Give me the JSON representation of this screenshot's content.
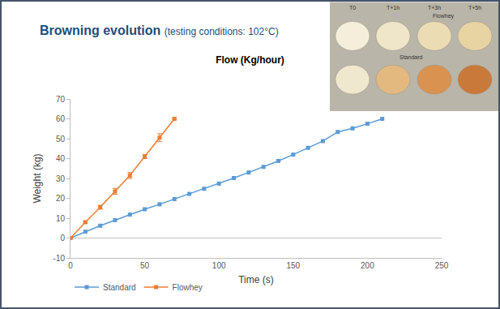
{
  "header": {
    "title": "Browning evolution",
    "subtitle": "(testing conditions: 102°C)"
  },
  "photo": {
    "columns": [
      "T0",
      "T+1h",
      "T+3h",
      "T+5h"
    ],
    "rows": [
      "Flowhey",
      "Standard"
    ]
  },
  "chart_data": {
    "type": "scatter",
    "title": "Flow (Kg/hour)",
    "x_label": "Time (s)",
    "y_label": "Weight (kg)",
    "xlim": [
      0,
      250
    ],
    "xticks": [
      0,
      50,
      100,
      150,
      200,
      250
    ],
    "ylim": [
      -10,
      70
    ],
    "yticks": [
      -10,
      0,
      10,
      20,
      30,
      40,
      50,
      60,
      70
    ],
    "grid": false,
    "legend": "bottom left",
    "series": [
      {
        "name": "Standard",
        "color": "#5B9BD5",
        "marker": "square",
        "line_style": "solid",
        "x": [
          0,
          10,
          20,
          30,
          40,
          50,
          60,
          70,
          80,
          90,
          100,
          110,
          120,
          130,
          140,
          150,
          160,
          170,
          180,
          190,
          200,
          210
        ],
        "values": [
          0,
          3.2,
          6.2,
          9.0,
          11.8,
          14.5,
          17.0,
          19.6,
          22.2,
          24.8,
          27.4,
          30.2,
          33.0,
          35.8,
          38.8,
          42.0,
          45.4,
          48.8,
          53.4,
          55.2,
          57.5,
          60
        ]
      },
      {
        "name": "Flowhey",
        "color": "#ED7D31",
        "marker": "square",
        "line_style": "solid",
        "x": [
          0,
          10,
          20,
          30,
          40,
          50,
          60,
          70
        ],
        "values": [
          0,
          8,
          15.5,
          23.5,
          31.5,
          41,
          50.5,
          60
        ],
        "errors": [
          0,
          0.5,
          1,
          1.5,
          1.5,
          1,
          2,
          0.5
        ]
      }
    ]
  }
}
